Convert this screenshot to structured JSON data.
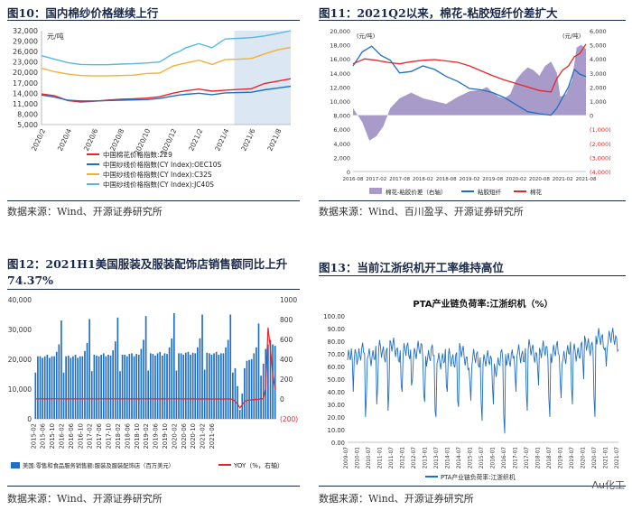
{
  "panels": {
    "fig10": {
      "title": "图10：国内棉纱价格继续上行",
      "source": "数据来源：Wind、开源证券研究所"
    },
    "fig11": {
      "title": "图11：2021Q2以来，棉花-粘胶短纤价差扩大",
      "source": "数据来源：Wind、百川盈孚、开源证券研究所"
    },
    "fig12": {
      "title": "图12：2021H1美国服装及服装配饰店销售额同比上升74.37%",
      "source": "数据来源：Wind、开源证券研究所"
    },
    "fig13": {
      "title": "图13：当前江浙织机开工率维持高位",
      "source": "数据来源：Wind、开源证券研究所"
    }
  },
  "watermark": "Au化工",
  "colors": {
    "navy": "#1b2a4a",
    "red": "#e8262a",
    "blue": "#1f6fc4",
    "orange": "#f0b23a",
    "cyan": "#57b8e0",
    "purple": "#a89bc9",
    "shade": "#dbe7f3"
  },
  "chart_data": [
    {
      "id": "fig10",
      "type": "line",
      "unit_label": "元/吨",
      "ylim": [
        5000,
        32000
      ],
      "yticks": [
        "32,000",
        "29,000",
        "26,000",
        "23,000",
        "20,000",
        "17,000",
        "14,000",
        "11,000",
        "8,000",
        "5,000"
      ],
      "ytick_values": [
        32000,
        29000,
        26000,
        23000,
        20000,
        17000,
        14000,
        11000,
        8000,
        5000
      ],
      "xticks": [
        "2020/2",
        "2020/4",
        "2020/6",
        "2020/8",
        "2020/10",
        "2020/12",
        "2021/2",
        "2021/4",
        "2021/6",
        "2021/8"
      ],
      "x_range": [
        0,
        19
      ],
      "shaded_x": [
        14.7,
        19
      ],
      "series": [
        {
          "name": "中国棉花价格指数:229",
          "color": "#e8262a",
          "x": [
            0,
            1,
            2,
            3,
            4,
            5,
            6,
            7,
            8,
            9,
            10,
            10.5,
            11,
            12,
            13,
            14,
            15,
            16,
            17,
            18,
            19
          ],
          "values": [
            13800,
            13300,
            11900,
            11500,
            11700,
            12000,
            12300,
            12400,
            12600,
            13000,
            14000,
            14400,
            14700,
            15200,
            14600,
            14900,
            15100,
            15300,
            16800,
            17500,
            18200
          ]
        },
        {
          "name": "中国纱线价格指数(CY Index):OEC10S",
          "color": "#1f6fc4",
          "x": [
            0,
            1,
            2,
            3,
            4,
            5,
            6,
            7,
            8,
            9,
            10,
            10.5,
            11,
            12,
            13,
            14,
            15,
            16,
            17,
            18,
            19
          ],
          "values": [
            13500,
            12900,
            12000,
            11800,
            11800,
            11900,
            12000,
            12100,
            12200,
            12500,
            13200,
            13500,
            13700,
            14000,
            13600,
            14100,
            14200,
            14300,
            15000,
            15500,
            16000
          ]
        },
        {
          "name": "中国纱线价格指数(CY Index):C32S",
          "color": "#f0b23a",
          "x": [
            0,
            1,
            2,
            3,
            4,
            5,
            6,
            7,
            8,
            9,
            10,
            10.5,
            11,
            12,
            13,
            14,
            15,
            16,
            17,
            18,
            19
          ],
          "values": [
            21200,
            20200,
            19500,
            19100,
            19000,
            19000,
            19100,
            19200,
            19700,
            19800,
            21800,
            22300,
            22700,
            23500,
            22300,
            23700,
            23800,
            24000,
            25300,
            26500,
            27200
          ]
        },
        {
          "name": "中国纱线价格指数(CY Index):JC40S",
          "color": "#57b8e0",
          "x": [
            0,
            1,
            2,
            3,
            4,
            5,
            6,
            7,
            8,
            9,
            10,
            10.5,
            11,
            12,
            13,
            14,
            15,
            16,
            17,
            18,
            19
          ],
          "values": [
            24800,
            23800,
            22800,
            22300,
            22200,
            22200,
            22400,
            22500,
            22700,
            23000,
            25300,
            26000,
            27100,
            28300,
            27100,
            29600,
            29800,
            30000,
            30500,
            31200,
            32000
          ]
        }
      ]
    },
    {
      "id": "fig11",
      "type": "area+line",
      "left_unit": "(元/吨)",
      "right_unit": "(元/吨)",
      "ylim_left": [
        0,
        20000
      ],
      "ylim_right": [
        -4000,
        6000
      ],
      "yticks_left": [
        "20,000",
        "18,000",
        "16,000",
        "14,000",
        "12,000",
        "10,000",
        "8,000",
        "6,000",
        "4,000",
        "2,000",
        "0"
      ],
      "yticks_left_values": [
        20000,
        18000,
        16000,
        14000,
        12000,
        10000,
        8000,
        6000,
        4000,
        2000,
        0
      ],
      "yticks_right": [
        "6,000",
        "5,000",
        "4,000",
        "3,000",
        "2,000",
        "1,000",
        "0",
        "(1,000)",
        "(2,000)",
        "(3,000)",
        "(4,000)"
      ],
      "yticks_right_values": [
        6000,
        5000,
        4000,
        3000,
        2000,
        1000,
        0,
        -1000,
        -2000,
        -3000,
        -4000
      ],
      "xticks": [
        "2016-08",
        "2017-02",
        "2017-08",
        "2018-02",
        "2018-08",
        "2019-02",
        "2019-08",
        "2020-02",
        "2020-08",
        "2021-02",
        "2021-08"
      ],
      "x_range": [
        0,
        20
      ],
      "series": [
        {
          "name": "棉花-粘胶价差（右轴）",
          "color": "#a89bc9",
          "axis": "right",
          "style": "area",
          "x": [
            0,
            0.8,
            1.4,
            2,
            2.6,
            3.2,
            4,
            5,
            6,
            7,
            8,
            9,
            10,
            11,
            11.5,
            12,
            12.5,
            13,
            13.5,
            14,
            14.5,
            15,
            15.5,
            16,
            16.5,
            17,
            17.5,
            17.8,
            18.3,
            18.8,
            19.2,
            19.6,
            20
          ],
          "values": [
            500,
            -500,
            -1800,
            -1500,
            -800,
            500,
            1200,
            1600,
            1200,
            1000,
            800,
            1300,
            1700,
            1800,
            2000,
            1600,
            1300,
            1200,
            1500,
            2500,
            3000,
            3400,
            3200,
            2800,
            3500,
            3800,
            3000,
            1300,
            1500,
            2500,
            4800,
            5000,
            4700
          ]
        },
        {
          "name": "粘胶短纤",
          "color": "#1f6fc4",
          "axis": "left",
          "x": [
            0,
            0.8,
            1.6,
            2.4,
            3.2,
            4,
            5,
            6,
            7,
            8,
            9,
            10,
            11,
            12,
            13,
            14,
            15,
            16,
            17,
            17.5,
            18,
            18.5,
            19,
            19.5,
            20
          ],
          "values": [
            15000,
            17000,
            17800,
            16500,
            15800,
            14000,
            14200,
            15000,
            14500,
            13500,
            12800,
            11800,
            11600,
            11200,
            10500,
            9500,
            8500,
            8200,
            8000,
            9000,
            10500,
            12000,
            14500,
            13800,
            13500
          ]
        },
        {
          "name": "棉花",
          "color": "#e8262a",
          "axis": "left",
          "x": [
            0,
            1,
            2,
            3,
            4,
            5,
            6,
            7,
            8,
            9,
            10,
            11,
            12,
            13,
            14,
            15,
            16,
            17,
            17.5,
            18,
            18.5,
            19,
            19.5,
            20
          ],
          "values": [
            15300,
            16000,
            15800,
            15500,
            15300,
            15600,
            15800,
            15900,
            15700,
            15500,
            15000,
            14300,
            13600,
            13000,
            12500,
            12000,
            11500,
            11300,
            13200,
            14400,
            15000,
            16300,
            16800,
            18100
          ]
        }
      ]
    },
    {
      "id": "fig12",
      "type": "bar+line",
      "ylim_left": [
        0,
        40000
      ],
      "ylim_right": [
        -200,
        1000
      ],
      "yticks_left": [
        "40,000",
        "30,000",
        "20,000",
        "10,000",
        "0"
      ],
      "yticks_left_values": [
        40000,
        30000,
        20000,
        10000,
        0
      ],
      "yticks_right": [
        "1000",
        "800",
        "600",
        "400",
        "200",
        "0",
        "(200)"
      ],
      "yticks_right_values": [
        1000,
        800,
        600,
        400,
        200,
        0,
        -200
      ],
      "xticks": [
        "2015-02",
        "2015-06",
        "2015-10",
        "2016-02",
        "2016-06",
        "2016-10",
        "2017-02",
        "2017-06",
        "2017-10",
        "2018-02",
        "2018-06",
        "2018-10",
        "2019-02",
        "2019-06",
        "2019-10",
        "2020-02",
        "2020-06",
        "2020-10",
        "2021-02",
        "2021-06"
      ],
      "bars": {
        "name": "美国:零售和食品服务销售额:服装及服装配饰店（百万美元）",
        "color": "#1f6fc4",
        "values": [
          15500,
          21000,
          21000,
          20500,
          21000,
          21500,
          20500,
          21000,
          21000,
          22500,
          25000,
          33000,
          15500,
          21000,
          21200,
          20500,
          21000,
          21500,
          20500,
          21000,
          21000,
          22800,
          25500,
          33500,
          16000,
          21500,
          21200,
          21000,
          21500,
          22000,
          21000,
          21500,
          21200,
          23000,
          26000,
          34000,
          16000,
          21500,
          21500,
          21000,
          21800,
          22000,
          21000,
          21800,
          21500,
          23500,
          26500,
          34500,
          16200,
          22000,
          21800,
          21200,
          22000,
          22500,
          21200,
          22000,
          21800,
          24000,
          27000,
          35500,
          16200,
          22000,
          22000,
          21500,
          22200,
          22500,
          21500,
          22200,
          22000,
          24000,
          27000,
          35000,
          16500,
          22200,
          22000,
          21500,
          22000,
          22500,
          21500,
          22000,
          22000,
          24000,
          26500,
          35000,
          15500,
          17000,
          11000,
          3000,
          8500,
          17000,
          19500,
          19800,
          20000,
          22000,
          24000,
          32000,
          14500,
          18500,
          23500,
          25000,
          26500,
          25000,
          24500
        ]
      },
      "line": {
        "name": "YOY（%，右轴）",
        "color": "#e8262a",
        "values": [
          0,
          2,
          3,
          2,
          1,
          2,
          1,
          2,
          2,
          2,
          2,
          2,
          1,
          1,
          0,
          1,
          1,
          2,
          1,
          2,
          1,
          2,
          2,
          2,
          2,
          2,
          0,
          2,
          2,
          3,
          2,
          2,
          1,
          2,
          2,
          3,
          0,
          2,
          2,
          1,
          2,
          1,
          1,
          2,
          1,
          2,
          2,
          3,
          2,
          2,
          1,
          1,
          1,
          2,
          1,
          2,
          1,
          2,
          2,
          2,
          2,
          1,
          2,
          1,
          1,
          0,
          1,
          1,
          1,
          0,
          1,
          0,
          1,
          1,
          0,
          0,
          0,
          0,
          0,
          0,
          0,
          1,
          0,
          0,
          -5,
          -25,
          -50,
          -90,
          -60,
          -25,
          -15,
          -10,
          -10,
          -5,
          -5,
          -5,
          5,
          0,
          110,
          720,
          510,
          250,
          100
        ]
      }
    },
    {
      "id": "fig13",
      "type": "line",
      "title": "PTA产业链负荷率:江浙织机（%）",
      "ylim": [
        0,
        100
      ],
      "yticks": [
        "100.00",
        "90.00",
        "80.00",
        "70.00",
        "60.00",
        "50.00",
        "40.00",
        "30.00",
        "20.00",
        "10.00",
        "0.00"
      ],
      "ytick_values": [
        100,
        90,
        80,
        70,
        60,
        50,
        40,
        30,
        20,
        10,
        0
      ],
      "xticks": [
        "2009-07",
        "2010-01",
        "2010-07",
        "2011-01",
        "2011-07",
        "2012-01",
        "2012-07",
        "2013-01",
        "2013-07",
        "2014-01",
        "2014-07",
        "2015-01",
        "2015-07",
        "2016-01",
        "2016-07",
        "2017-01",
        "2017-07",
        "2018-01",
        "2018-07",
        "2019-01",
        "2019-07",
        "2020-01",
        "2020-07",
        "2021-01",
        "2021-07"
      ],
      "series": [
        {
          "name": "PTA产业链负荷率:江浙织机",
          "color": "#1f6fc4",
          "dips_at": [
            0.5,
            1.6,
            2.6,
            3.6,
            4.8,
            5.7,
            6.8,
            7.8,
            8.8,
            9.8,
            10.9,
            11.9,
            12.9,
            13.9,
            14.9,
            15.9,
            16.9,
            17.9,
            18.9,
            19.9,
            20.9,
            21.9,
            22.9
          ],
          "dip_values": [
            40,
            15,
            25,
            20,
            30,
            35,
            22,
            10,
            30,
            18,
            28,
            12,
            25,
            2,
            35,
            20,
            40,
            15,
            30,
            25,
            45,
            15,
            55
          ],
          "base_level": [
            65,
            72,
            70,
            72,
            74,
            70,
            72,
            70,
            68,
            66,
            70,
            64,
            66,
            60,
            68,
            70,
            72,
            70,
            72,
            70,
            72,
            75,
            80,
            82,
            80
          ]
        }
      ]
    }
  ]
}
